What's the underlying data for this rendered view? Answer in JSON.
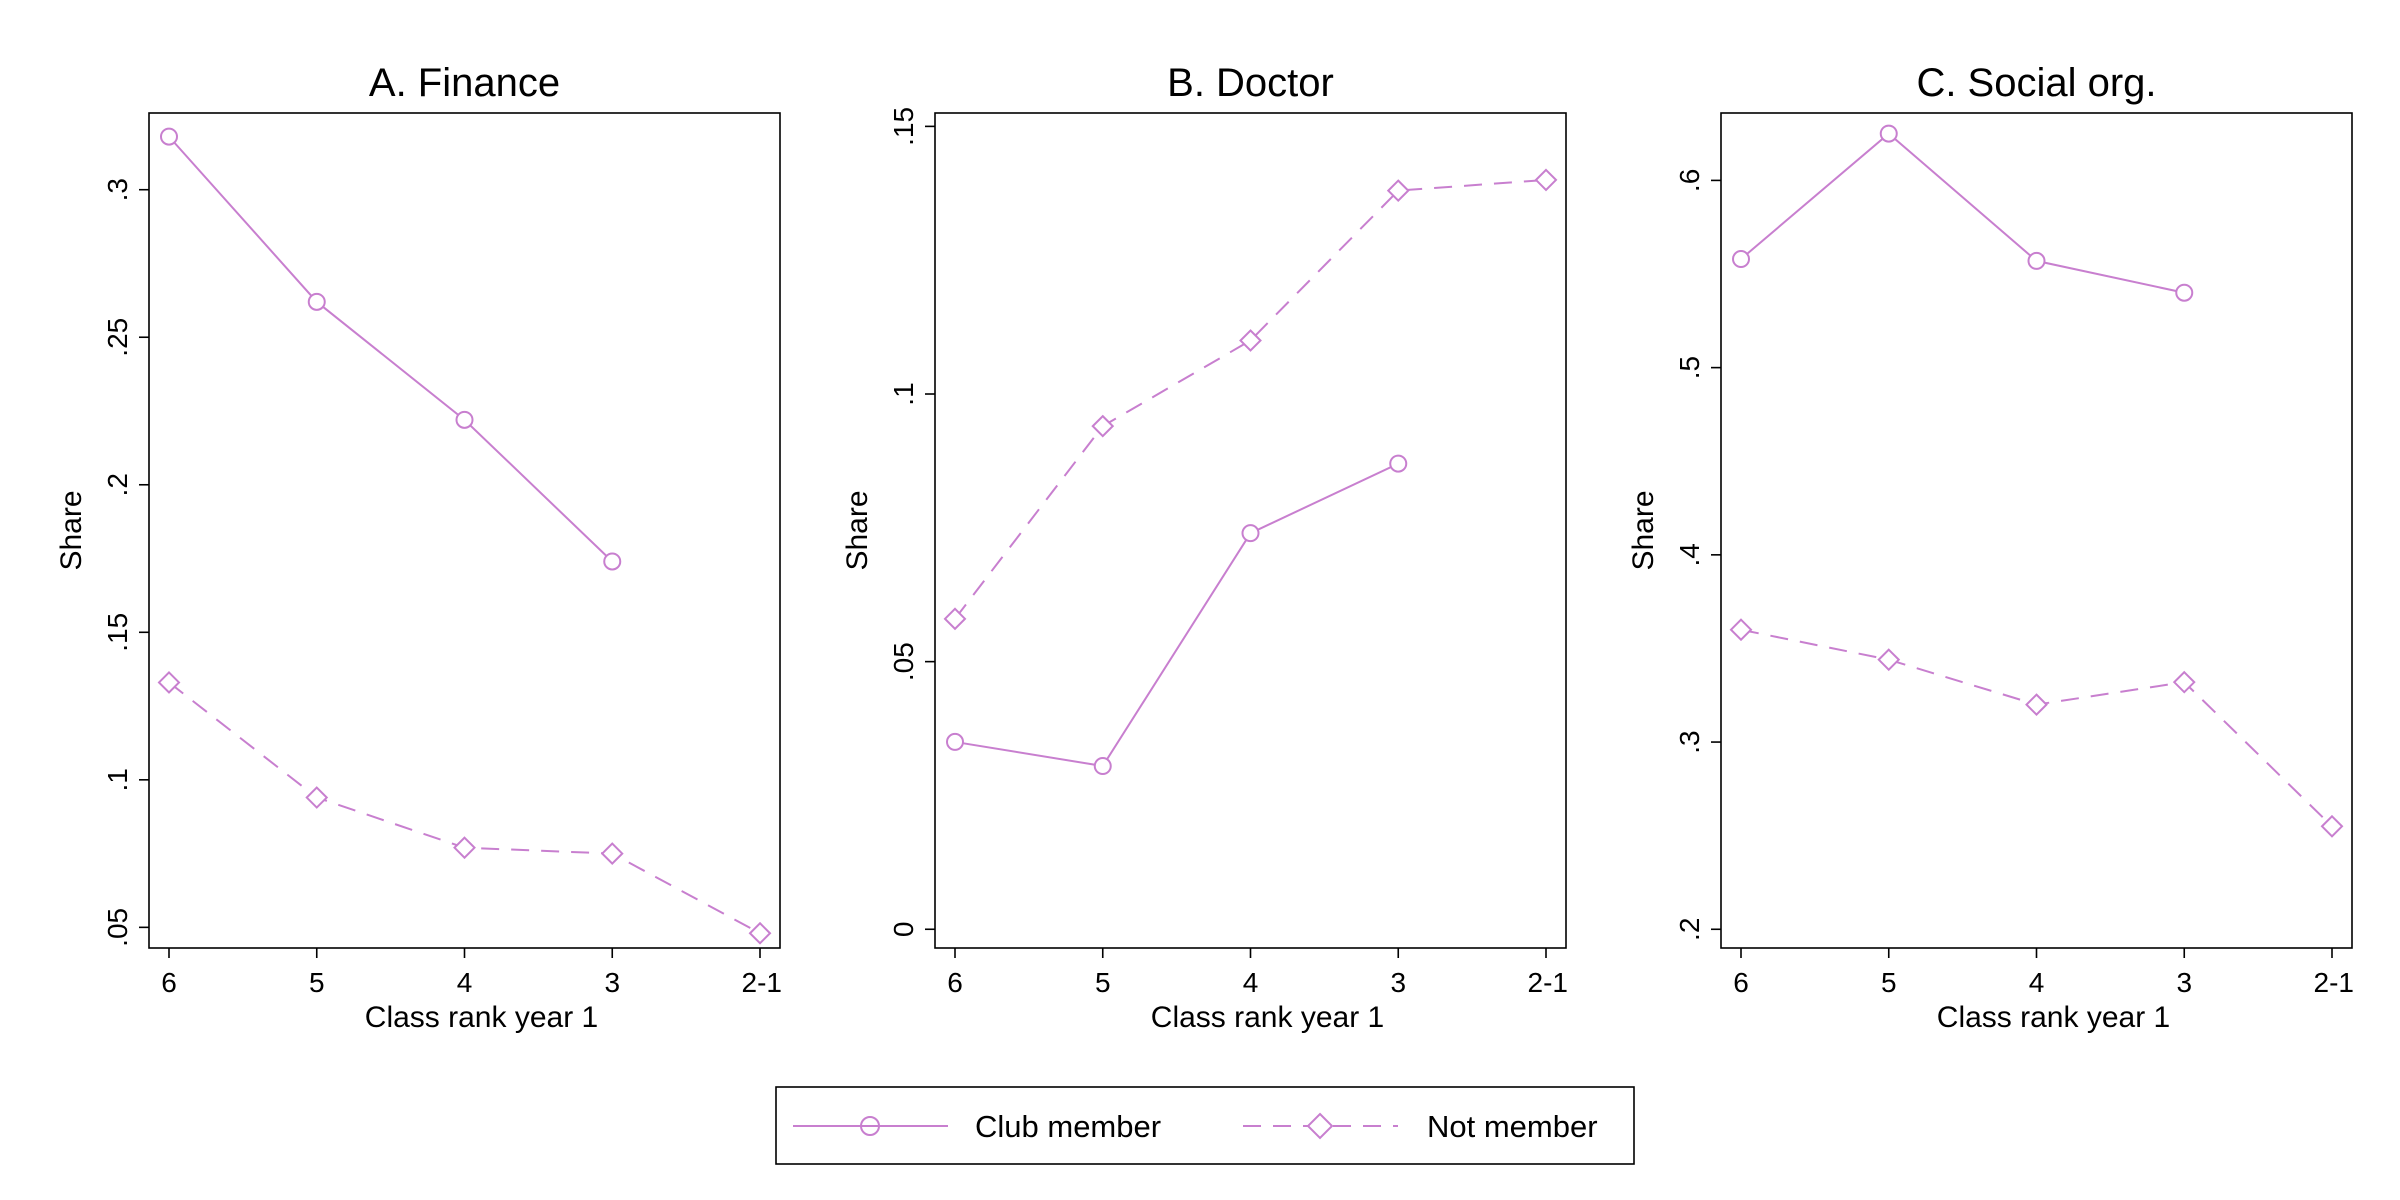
{
  "chart_data": [
    {
      "type": "line",
      "title": "A. Finance",
      "xlabel": "Class rank year 1",
      "ylabel": "Share",
      "categories": [
        "6",
        "5",
        "4",
        "3",
        "2-1"
      ],
      "ylim": [
        0.043,
        0.326
      ],
      "yticks": [
        0.05,
        0.1,
        0.15,
        0.2,
        0.25,
        0.3
      ],
      "ytick_labels": [
        ".05",
        ".1",
        ".15",
        ".2",
        ".25",
        ".3"
      ],
      "grid": false,
      "series": [
        {
          "name": "Club member",
          "values": [
            0.318,
            0.262,
            0.222,
            0.174,
            null
          ]
        },
        {
          "name": "Not member",
          "values": [
            0.133,
            0.094,
            0.077,
            0.075,
            0.048
          ]
        }
      ]
    },
    {
      "type": "line",
      "title": "B. Doctor",
      "xlabel": "Class rank year 1",
      "ylabel": "Share",
      "categories": [
        "6",
        "5",
        "4",
        "3",
        "2-1"
      ],
      "ylim": [
        -0.0035,
        0.1525
      ],
      "yticks": [
        0,
        0.05,
        0.1,
        0.15
      ],
      "ytick_labels": [
        "0",
        ".05",
        ".1",
        ".15"
      ],
      "grid": false,
      "series": [
        {
          "name": "Club member",
          "values": [
            0.035,
            0.0305,
            0.074,
            0.087,
            null
          ]
        },
        {
          "name": "Not member",
          "values": [
            0.058,
            0.094,
            0.11,
            0.138,
            0.14
          ]
        }
      ]
    },
    {
      "type": "line",
      "title": "C. Social org.",
      "xlabel": "Class rank year 1",
      "ylabel": "Share",
      "categories": [
        "6",
        "5",
        "4",
        "3",
        "2-1"
      ],
      "ylim": [
        0.19,
        0.636
      ],
      "yticks": [
        0.2,
        0.3,
        0.4,
        0.5,
        0.6
      ],
      "ytick_labels": [
        ".2",
        ".3",
        ".4",
        ".5",
        ".6"
      ],
      "grid": false,
      "series": [
        {
          "name": "Club member",
          "values": [
            0.558,
            0.625,
            0.557,
            0.54,
            null
          ]
        },
        {
          "name": "Not member",
          "values": [
            0.36,
            0.344,
            0.32,
            0.332,
            0.255
          ]
        }
      ]
    }
  ],
  "legend": {
    "placement": "bottom-center",
    "items": [
      {
        "label": "Club member",
        "marker": "circle",
        "line": "solid"
      },
      {
        "label": "Not member",
        "marker": "diamond",
        "line": "dashed"
      }
    ]
  },
  "colors": {
    "series": "#c87fcf",
    "axis": "#000000",
    "background": "#ffffff"
  }
}
